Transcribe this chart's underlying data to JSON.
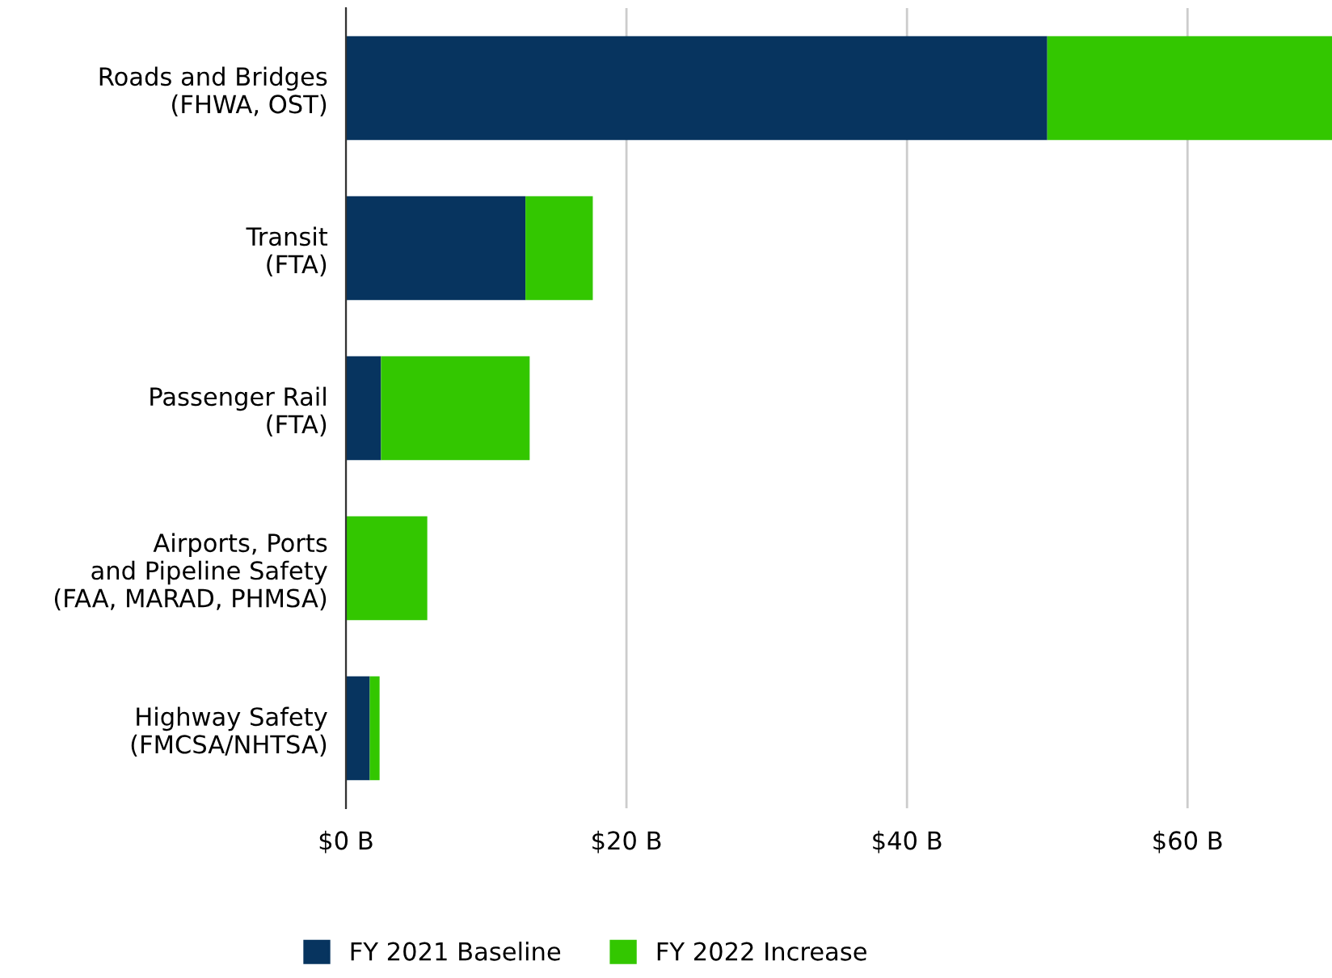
{
  "chart_data": {
    "type": "bar",
    "orientation": "horizontal",
    "stacked": true,
    "categories": [
      "Roads and Bridges\n(FHWA, OST)",
      "Transit\n(FTA)",
      "Passenger Rail\n(FTA)",
      "Airports, Ports\nand Pipeline Safety\n(FAA, MARAD, PHMSA)",
      "Highway Safety\n(FMCSA/NHTSA)"
    ],
    "series": [
      {
        "name": "FY 2021 Baseline",
        "color": "#07345f",
        "values": [
          50.0,
          12.8,
          2.5,
          0,
          1.7
        ]
      },
      {
        "name": "FY 2022 Increase",
        "color": "#33c700",
        "values": [
          20.3,
          4.8,
          10.6,
          5.8,
          0.7
        ]
      }
    ],
    "xlim": [
      0,
      70.3
    ],
    "xticks": [
      {
        "value": 0,
        "label": "$0 B"
      },
      {
        "value": 20,
        "label": "$20 B"
      },
      {
        "value": 40,
        "label": "$40 B"
      },
      {
        "value": 60,
        "label": "$60 B"
      }
    ],
    "grid": "x",
    "legend": "bottom"
  }
}
